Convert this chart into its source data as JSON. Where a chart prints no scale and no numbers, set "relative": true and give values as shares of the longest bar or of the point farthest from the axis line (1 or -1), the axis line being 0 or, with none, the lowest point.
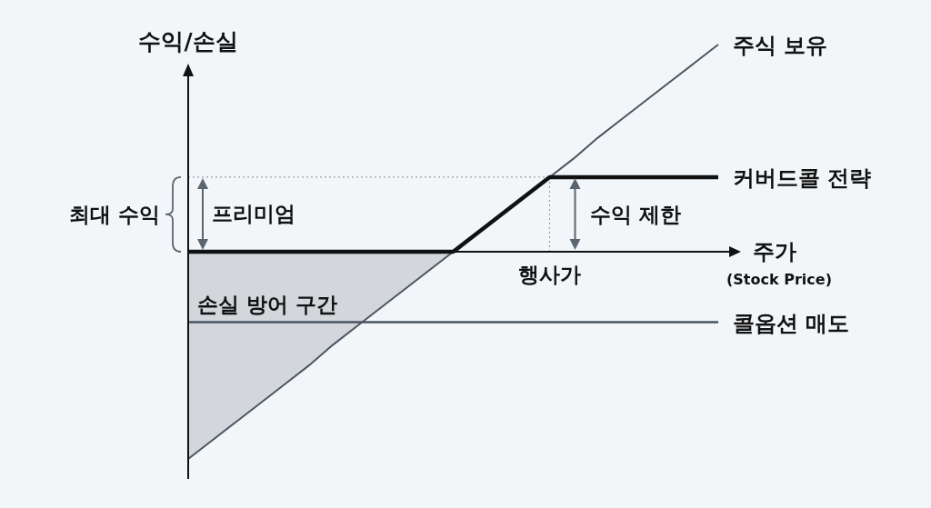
{
  "chart_data": {
    "type": "line",
    "relative": true,
    "xlabel": "주가",
    "ylabel": "수익/손실",
    "categories": [
      null,
      null,
      null,
      null,
      null,
      null,
      null,
      null,
      null,
      null,
      null,
      null,
      null,
      null,
      null,
      null,
      null,
      null,
      null,
      null,
      null,
      null,
      null
    ],
    "series": [
      {
        "name": "주식 보유",
        "color": "#4b5661",
        "values": [
          -1,
          -0.91,
          -0.82,
          -0.73,
          -0.64,
          -0.55,
          -0.45,
          -0.36,
          -0.27,
          -0.18,
          -0.09,
          0,
          0.09,
          0.18,
          0.27,
          0.36,
          0.45,
          0.55,
          0.64,
          0.73,
          0.82,
          0.91,
          1
        ]
      },
      {
        "name": "커버드콜 전략",
        "color": "#111111",
        "values": [
          0,
          0,
          0,
          0,
          0,
          0,
          0,
          0,
          0,
          0,
          0,
          0,
          0.09,
          0.18,
          0.27,
          0.36,
          0.36,
          0.36,
          0.36,
          0.36,
          0.36,
          0.36,
          0.36
        ]
      },
      {
        "name": "콜옵션 매도",
        "color": "#4b5661",
        "values": [
          -0.34,
          -0.34,
          -0.34,
          -0.34,
          -0.34,
          -0.34,
          -0.34,
          -0.34,
          -0.34,
          -0.34,
          -0.34,
          -0.34,
          -0.34,
          -0.34,
          -0.34,
          -0.34,
          -0.34,
          -0.34,
          -0.34,
          -0.34,
          -0.34,
          -0.34,
          -0.34
        ]
      },
      {
        "name": "손실 방어 구간",
        "type": "area",
        "color": "#d3d6db",
        "values": [
          -1,
          -0.91,
          -0.82,
          -0.73,
          -0.64,
          -0.55,
          -0.45,
          -0.36,
          -0.27,
          -0.18,
          -0.09,
          0,
          null,
          null,
          null,
          null,
          null,
          null,
          null,
          null,
          null,
          null,
          null
        ]
      }
    ],
    "ref_lines": [
      {
        "axis": "y",
        "value": 0.36,
        "line_style": "dotted",
        "color": "#9aa1a8"
      }
    ],
    "annotations": [
      "최대 수익",
      "프리미엄",
      "수익 제한",
      "행사가",
      "(Stock Price)"
    ]
  }
}
